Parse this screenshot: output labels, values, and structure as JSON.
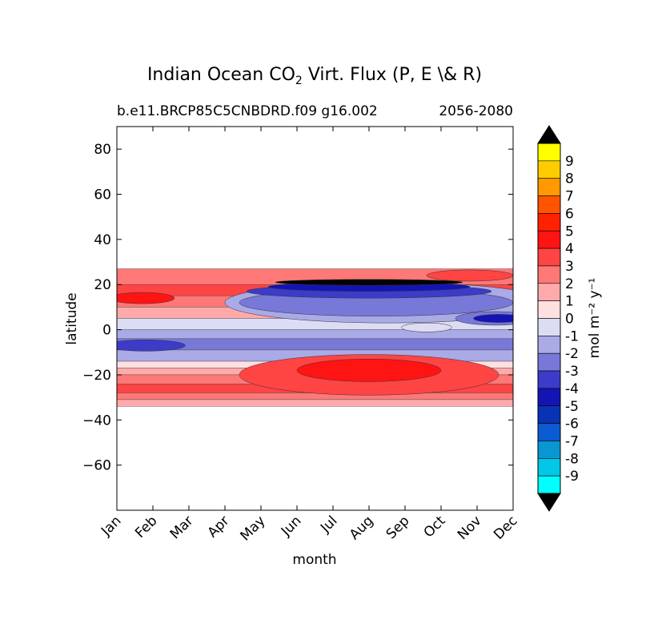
{
  "chart_data": {
    "type": "contour",
    "title_prefix": "Indian Ocean CO",
    "title_subscript": "2",
    "title_suffix": " Virt. Flux (P, E \\& R)",
    "subtitle_left": "b.e11.BRCP85C5CNBDRD.f09 g16.002",
    "subtitle_right": "2056-2080",
    "xlabel": "month",
    "ylabel": "latitude",
    "x_categories": [
      "Jan",
      "Feb",
      "Mar",
      "Apr",
      "May",
      "Jun",
      "Jul",
      "Aug",
      "Sep",
      "Oct",
      "Nov",
      "Dec"
    ],
    "xlim": [
      0,
      11
    ],
    "ylim": [
      -80,
      90
    ],
    "y_ticks": [
      {
        "value": 80,
        "label": "80"
      },
      {
        "value": 60,
        "label": "60"
      },
      {
        "value": 40,
        "label": "40"
      },
      {
        "value": 20,
        "label": "20"
      },
      {
        "value": 0,
        "label": "0"
      },
      {
        "value": -20,
        "label": "−20"
      },
      {
        "value": -40,
        "label": "−40"
      },
      {
        "value": -60,
        "label": "−60"
      }
    ],
    "data_lat_range": [
      -34,
      27
    ],
    "colorbar": {
      "label": "mol m⁻² y⁻¹",
      "levels": [
        {
          "label": "9",
          "color": "#ffff00"
        },
        {
          "label": "8",
          "color": "#ffcc00"
        },
        {
          "label": "7",
          "color": "#ff9900"
        },
        {
          "label": "6",
          "color": "#ff5500"
        },
        {
          "label": "5",
          "color": "#ff2200"
        },
        {
          "label": "4",
          "color": "#ff1414"
        },
        {
          "label": "3",
          "color": "#ff4444"
        },
        {
          "label": "2",
          "color": "#ff7878"
        },
        {
          "label": "1",
          "color": "#ffaaaa"
        },
        {
          "label": "0",
          "color": "#ffe0e0"
        },
        {
          "label": "-1",
          "color": "#dcdcf4"
        },
        {
          "label": "-2",
          "color": "#aaaae6"
        },
        {
          "label": "-3",
          "color": "#7878d8"
        },
        {
          "label": "-4",
          "color": "#3c3cc8"
        },
        {
          "label": "-5",
          "color": "#1414b4"
        },
        {
          "label": "-6",
          "color": "#0a32b4"
        },
        {
          "label": "-7",
          "color": "#0a5ad2"
        },
        {
          "label": "-8",
          "color": "#0a96d2"
        },
        {
          "label": "-9",
          "color": "#00c8e6"
        },
        {
          "label": "",
          "color": "#00ffff"
        }
      ],
      "over_color": "#000000",
      "under_color": "#000000"
    },
    "bands": [
      {
        "lat": [
          20,
          27
        ],
        "color": "#ff7878"
      },
      {
        "lat": [
          15,
          20
        ],
        "color": "#ff4444"
      },
      {
        "lat": [
          10,
          15
        ],
        "color": "#ff7878"
      },
      {
        "lat": [
          5,
          10
        ],
        "color": "#ffaaaa"
      },
      {
        "lat": [
          0,
          5
        ],
        "color": "#dcdcf4"
      },
      {
        "lat": [
          -4,
          0
        ],
        "color": "#aaaae6"
      },
      {
        "lat": [
          -9,
          -4
        ],
        "color": "#7878d8"
      },
      {
        "lat": [
          -14,
          -9
        ],
        "color": "#aaaae6"
      },
      {
        "lat": [
          -17,
          -14
        ],
        "color": "#ffe0e0"
      },
      {
        "lat": [
          -20,
          -17
        ],
        "color": "#ffaaaa"
      },
      {
        "lat": [
          -24,
          -20
        ],
        "color": "#ff7878"
      },
      {
        "lat": [
          -28,
          -24
        ],
        "color": "#ff4444"
      },
      {
        "lat": [
          -31,
          -28
        ],
        "color": "#ff7878"
      },
      {
        "lat": [
          -34,
          -31
        ],
        "color": "#ffaaaa"
      }
    ],
    "blobs": [
      {
        "name": "south-red-core-outer",
        "cx": 7.0,
        "cy": -20,
        "rx": 3.6,
        "ry": 9,
        "color": "#ff4444"
      },
      {
        "name": "south-red-core",
        "cx": 7.0,
        "cy": -18,
        "rx": 2.0,
        "ry": 5,
        "color": "#ff1414"
      },
      {
        "name": "north-blue-outer",
        "cx": 7.5,
        "cy": 12,
        "rx": 4.5,
        "ry": 9,
        "color": "#aaaae6"
      },
      {
        "name": "north-blue-mid",
        "cx": 7.2,
        "cy": 12,
        "rx": 3.8,
        "ry": 6,
        "color": "#7878d8"
      },
      {
        "name": "north-blue-band",
        "cx": 7.0,
        "cy": 17,
        "rx": 3.4,
        "ry": 3,
        "color": "#3c3cc8"
      },
      {
        "name": "north-blue-core",
        "cx": 7.0,
        "cy": 19,
        "rx": 2.8,
        "ry": 2,
        "color": "#1414b4"
      },
      {
        "name": "north-dark-core",
        "cx": 7.0,
        "cy": 21,
        "rx": 2.6,
        "ry": 1.3,
        "color": "#000000"
      },
      {
        "name": "east-blue-blob",
        "cx": 10.5,
        "cy": 5,
        "rx": 1.1,
        "ry": 3,
        "color": "#7878d8"
      },
      {
        "name": "east-blue-core",
        "cx": 10.6,
        "cy": 5,
        "rx": 0.7,
        "ry": 1.8,
        "color": "#1414b4"
      },
      {
        "name": "west-blue-core",
        "cx": 0.8,
        "cy": -7,
        "rx": 1.1,
        "ry": 2.5,
        "color": "#3c3cc8"
      },
      {
        "name": "oct-light-patch",
        "cx": 8.6,
        "cy": 1,
        "rx": 0.7,
        "ry": 2,
        "color": "#dcdcf4"
      },
      {
        "name": "nw-red-patch",
        "cx": 0.7,
        "cy": 14,
        "rx": 0.9,
        "ry": 2.5,
        "color": "#ff1414"
      },
      {
        "name": "ne-red-patch",
        "cx": 9.8,
        "cy": 24,
        "rx": 1.2,
        "ry": 2.5,
        "color": "#ff4444"
      }
    ]
  }
}
